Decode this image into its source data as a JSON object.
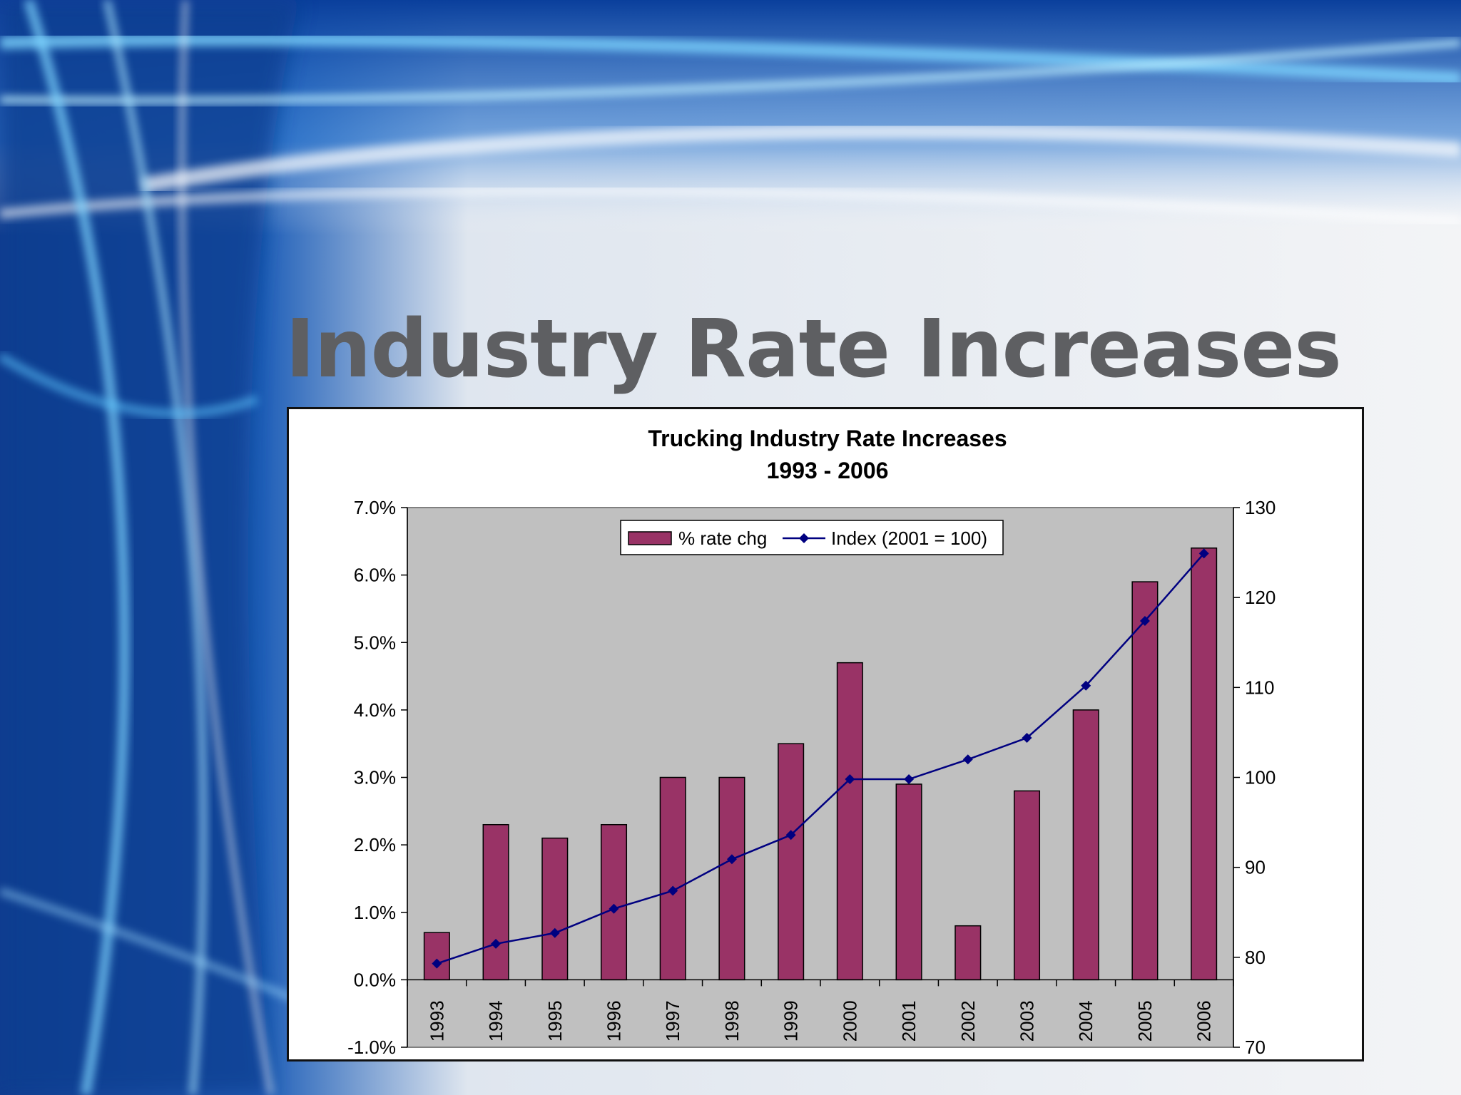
{
  "slide": {
    "title": "Industry Rate Increases"
  },
  "colors": {
    "bar": "#993366",
    "line": "#000080",
    "plot_area": "#c0c0c0"
  },
  "chart_data": {
    "type": "bar",
    "title": "Trucking Industry Rate Increases",
    "subtitle": "1993 - 2006",
    "categories": [
      "1993",
      "1994",
      "1995",
      "1996",
      "1997",
      "1998",
      "1999",
      "2000",
      "2001",
      "2002",
      "2003",
      "2004",
      "2005",
      "2006"
    ],
    "series": [
      {
        "name": "% rate chg",
        "type": "bar",
        "axis": "left",
        "values": [
          0.7,
          2.3,
          2.1,
          2.3,
          3.0,
          3.0,
          3.5,
          4.7,
          2.9,
          0.8,
          2.8,
          4.0,
          5.9,
          6.4
        ]
      },
      {
        "name": "Index (2001 = 100)",
        "type": "line",
        "axis": "right",
        "values": [
          79.3,
          81.5,
          82.7,
          85.4,
          87.4,
          90.9,
          93.6,
          99.8,
          99.8,
          102.0,
          104.4,
          110.2,
          117.4,
          124.9
        ]
      }
    ],
    "y_left": {
      "ylim": [
        -1.0,
        7.0
      ],
      "ticks": [
        "-1.0%",
        "0.0%",
        "1.0%",
        "2.0%",
        "3.0%",
        "4.0%",
        "5.0%",
        "6.0%",
        "7.0%"
      ]
    },
    "y_right": {
      "ylim": [
        70,
        130
      ],
      "ticks": [
        "70",
        "80",
        "90",
        "100",
        "110",
        "120",
        "130"
      ]
    },
    "legend": "top-center",
    "grid": false
  }
}
